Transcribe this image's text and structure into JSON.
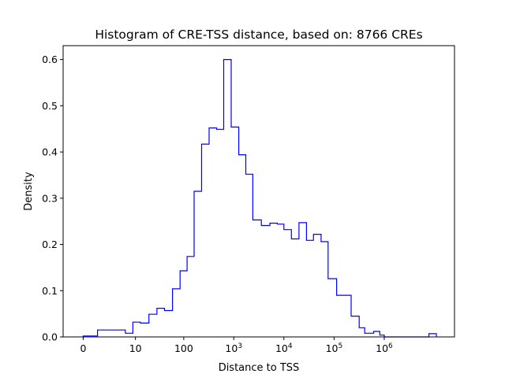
{
  "chart_data": {
    "type": "histogram",
    "title": "Histogram of CRE-TSS distance, based on: 8766 CREs",
    "xlabel": "Distance to TSS",
    "ylabel": "Density",
    "x_scale": "log (1 + distance)",
    "xlim_log10": [
      -0.4,
      7.4
    ],
    "ylim": [
      0,
      0.63
    ],
    "grid": false,
    "legend": "none",
    "line_color": "#0000ff",
    "x_ticks": [
      {
        "value": 0,
        "base": "0",
        "exp": ""
      },
      {
        "value": 10,
        "base": "10",
        "exp": ""
      },
      {
        "value": 100,
        "base": "100",
        "exp": ""
      },
      {
        "value": 1000,
        "base": "10",
        "exp": "3"
      },
      {
        "value": 10000,
        "base": "10",
        "exp": "4"
      },
      {
        "value": 100000,
        "base": "10",
        "exp": "5"
      },
      {
        "value": 1000000,
        "base": "10",
        "exp": "6"
      }
    ],
    "y_ticks": [
      "0.0",
      "0.1",
      "0.2",
      "0.3",
      "0.4",
      "0.5",
      "0.6"
    ],
    "bin_edges_log10": [
      0,
      0.285,
      0.7,
      0.74,
      0.79,
      0.84,
      0.99,
      1.14,
      1.31,
      1.47,
      1.62,
      1.78,
      1.93,
      2.07,
      2.21,
      2.36,
      2.51,
      2.66,
      2.8,
      2.95,
      3.1,
      3.24,
      3.38,
      3.55,
      3.72,
      3.87,
      4.0,
      4.15,
      4.3,
      4.45,
      4.59,
      4.74,
      4.88,
      5.05,
      5.34,
      5.5,
      5.61,
      5.79,
      5.91,
      6.0,
      6.89,
      7.04
    ],
    "density": [
      0.002,
      0.015,
      0.015,
      0.015,
      0.015,
      0.008,
      0.032,
      0.03,
      0.049,
      0.062,
      0.057,
      0.104,
      0.143,
      0.174,
      0.315,
      0.417,
      0.452,
      0.449,
      0.6,
      0.454,
      0.394,
      0.352,
      0.253,
      0.241,
      0.246,
      0.244,
      0.232,
      0.212,
      0.247,
      0.209,
      0.222,
      0.206,
      0.126,
      0.09,
      0.045,
      0.02,
      0.008,
      0.012,
      0.004,
      0.0,
      0.007
    ]
  }
}
